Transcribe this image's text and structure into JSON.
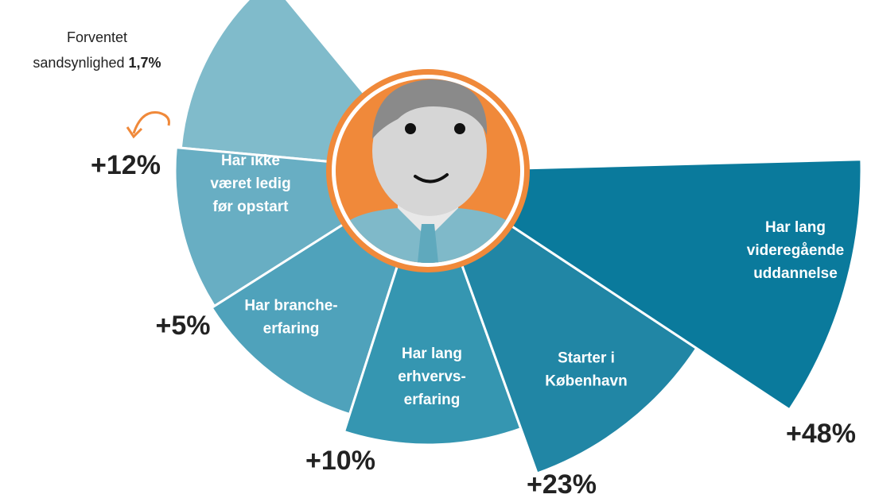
{
  "base": {
    "label": [
      "Forventet",
      "sandsynlighed"
    ],
    "value": "1,7%"
  },
  "segments": [
    {
      "label": [
        "Har ikke",
        "været ledig",
        "før opstart"
      ],
      "change": "+12%"
    },
    {
      "label": [
        "Har branche-",
        "erfaring"
      ],
      "change": "+5%"
    },
    {
      "label": [
        "Har lang",
        "erhvervs-",
        "erfaring"
      ],
      "change": "+10%"
    },
    {
      "label": [
        "Starter i",
        "København"
      ],
      "change": "+23%"
    },
    {
      "label": [
        "Har lang",
        "videregående",
        "uddannelse"
      ],
      "change": "+48%"
    }
  ]
}
